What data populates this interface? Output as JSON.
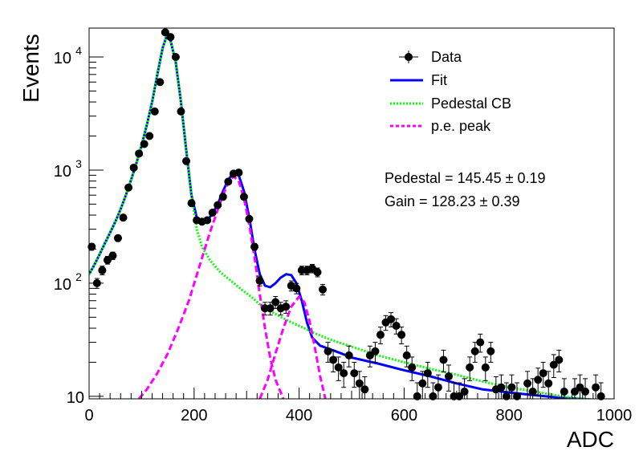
{
  "chart_data": {
    "type": "scatter",
    "xlabel": "ADC",
    "ylabel": "Events",
    "xlim": [
      0,
      1000
    ],
    "ylim": [
      9.5,
      18000
    ],
    "yscale": "log",
    "x_ticks": [
      "0",
      "200",
      "400",
      "600",
      "800",
      "1000"
    ],
    "y_ticks": [
      {
        "value": 10,
        "base": "10",
        "exp": ""
      },
      {
        "value": 100,
        "base": "10",
        "exp": "2"
      },
      {
        "value": 1000,
        "base": "10",
        "exp": "3"
      },
      {
        "value": 10000,
        "base": "10",
        "exp": "4"
      }
    ],
    "legend": {
      "placement": "top-right",
      "entries": [
        {
          "label": "Data",
          "style": "marker",
          "color": "#000000"
        },
        {
          "label": "Fit",
          "style": "solid",
          "color": "#0000ff"
        },
        {
          "label": "Pedestal CB",
          "style": "dotted",
          "color": "#00ff00"
        },
        {
          "label": "p.e. peak",
          "style": "dashed",
          "color": "#ff00ff"
        }
      ]
    },
    "annotations": [
      {
        "text": "Pedestal = 145.45",
        "pm": "± 0.19"
      },
      {
        "text": "Gain = 128.23",
        "pm": "± 0.39"
      }
    ],
    "series": [
      {
        "name": "Data",
        "style": "points",
        "color": "#000000",
        "points": [
          [
            5,
            210
          ],
          [
            15,
            100
          ],
          [
            25,
            130
          ],
          [
            35,
            160
          ],
          [
            45,
            175
          ],
          [
            55,
            250
          ],
          [
            65,
            380
          ],
          [
            75,
            700
          ],
          [
            85,
            1050
          ],
          [
            95,
            1400
          ],
          [
            105,
            1700
          ],
          [
            115,
            2000
          ],
          [
            125,
            3300
          ],
          [
            135,
            6000
          ],
          [
            145,
            16500
          ],
          [
            155,
            15000
          ],
          [
            165,
            10000
          ],
          [
            175,
            3300
          ],
          [
            185,
            1200
          ],
          [
            195,
            510
          ],
          [
            205,
            360
          ],
          [
            215,
            350
          ],
          [
            225,
            360
          ],
          [
            235,
            420
          ],
          [
            245,
            490
          ],
          [
            255,
            580
          ],
          [
            265,
            790
          ],
          [
            275,
            930
          ],
          [
            285,
            950
          ],
          [
            295,
            580
          ],
          [
            305,
            370
          ],
          [
            315,
            210
          ],
          [
            325,
            105
          ],
          [
            335,
            60
          ],
          [
            345,
            60
          ],
          [
            355,
            68
          ],
          [
            365,
            60
          ],
          [
            375,
            62
          ],
          [
            385,
            95
          ],
          [
            395,
            90
          ],
          [
            405,
            130
          ],
          [
            415,
            130
          ],
          [
            425,
            135
          ],
          [
            435,
            125
          ],
          [
            445,
            88
          ],
          [
            455,
            25
          ],
          [
            465,
            21
          ],
          [
            475,
            18
          ],
          [
            485,
            16
          ],
          [
            495,
            23
          ],
          [
            505,
            16
          ],
          [
            515,
            13
          ],
          [
            525,
            11.5
          ],
          [
            535,
            23
          ],
          [
            545,
            25
          ],
          [
            555,
            35
          ],
          [
            565,
            45
          ],
          [
            575,
            48
          ],
          [
            585,
            42
          ],
          [
            595,
            35
          ],
          [
            605,
            23
          ],
          [
            615,
            18
          ],
          [
            625,
            10
          ],
          [
            635,
            13
          ],
          [
            645,
            16
          ],
          [
            655,
            10
          ],
          [
            665,
            12
          ],
          [
            675,
            21
          ],
          [
            685,
            15
          ],
          [
            695,
            10
          ],
          [
            705,
            10
          ],
          [
            715,
            11
          ],
          [
            725,
            18
          ],
          [
            735,
            25
          ],
          [
            745,
            30
          ],
          [
            755,
            18
          ],
          [
            765,
            25
          ],
          [
            775,
            11.5
          ],
          [
            785,
            12
          ],
          [
            795,
            10
          ],
          [
            805,
            12
          ],
          [
            815,
            10
          ],
          [
            825,
            9
          ],
          [
            835,
            13
          ],
          [
            845,
            11
          ],
          [
            855,
            14
          ],
          [
            865,
            16
          ],
          [
            875,
            13
          ],
          [
            885,
            19
          ],
          [
            895,
            21
          ],
          [
            905,
            11
          ],
          [
            915,
            9
          ],
          [
            925,
            11
          ],
          [
            935,
            12
          ],
          [
            945,
            11
          ],
          [
            955,
            9
          ],
          [
            965,
            12
          ],
          [
            975,
            10
          ],
          [
            985,
            8
          ],
          [
            995,
            9
          ]
        ]
      },
      {
        "name": "Fit",
        "style": "solid",
        "color": "#0000ff",
        "points": [
          [
            0,
            120
          ],
          [
            10,
            145
          ],
          [
            20,
            180
          ],
          [
            30,
            225
          ],
          [
            40,
            280
          ],
          [
            50,
            350
          ],
          [
            60,
            450
          ],
          [
            70,
            600
          ],
          [
            80,
            820
          ],
          [
            90,
            1150
          ],
          [
            100,
            1650
          ],
          [
            110,
            2500
          ],
          [
            120,
            4000
          ],
          [
            130,
            7000
          ],
          [
            140,
            12000
          ],
          [
            148,
            15500
          ],
          [
            155,
            14000
          ],
          [
            165,
            9000
          ],
          [
            175,
            4000
          ],
          [
            185,
            1500
          ],
          [
            195,
            600
          ],
          [
            205,
            380
          ],
          [
            215,
            340
          ],
          [
            225,
            360
          ],
          [
            235,
            410
          ],
          [
            245,
            500
          ],
          [
            255,
            650
          ],
          [
            265,
            820
          ],
          [
            275,
            950
          ],
          [
            285,
            900
          ],
          [
            295,
            650
          ],
          [
            305,
            380
          ],
          [
            315,
            200
          ],
          [
            325,
            120
          ],
          [
            335,
            95
          ],
          [
            345,
            92
          ],
          [
            355,
            100
          ],
          [
            365,
            112
          ],
          [
            375,
            120
          ],
          [
            385,
            118
          ],
          [
            395,
            100
          ],
          [
            405,
            70
          ],
          [
            415,
            45
          ],
          [
            425,
            33
          ],
          [
            440,
            28
          ],
          [
            460,
            26
          ],
          [
            480,
            24
          ],
          [
            500,
            22
          ],
          [
            550,
            19.5
          ],
          [
            600,
            17
          ],
          [
            650,
            15
          ],
          [
            700,
            13
          ],
          [
            750,
            11.5
          ],
          [
            800,
            10.8
          ],
          [
            850,
            10.2
          ],
          [
            900,
            9.7
          ],
          [
            950,
            9.4
          ],
          [
            995,
            9.1
          ]
        ]
      },
      {
        "name": "Pedestal CB",
        "style": "dotted",
        "color": "#00ff00",
        "points": [
          [
            0,
            120
          ],
          [
            10,
            145
          ],
          [
            20,
            180
          ],
          [
            30,
            225
          ],
          [
            40,
            280
          ],
          [
            50,
            350
          ],
          [
            60,
            450
          ],
          [
            70,
            600
          ],
          [
            80,
            820
          ],
          [
            90,
            1150
          ],
          [
            100,
            1650
          ],
          [
            110,
            2500
          ],
          [
            120,
            4000
          ],
          [
            130,
            7000
          ],
          [
            140,
            12000
          ],
          [
            148,
            15500
          ],
          [
            155,
            14000
          ],
          [
            165,
            9000
          ],
          [
            175,
            4000
          ],
          [
            185,
            1500
          ],
          [
            195,
            600
          ],
          [
            205,
            300
          ],
          [
            215,
            210
          ],
          [
            230,
            160
          ],
          [
            250,
            125
          ],
          [
            270,
            105
          ],
          [
            290,
            88
          ],
          [
            310,
            75
          ],
          [
            330,
            62
          ],
          [
            350,
            55
          ],
          [
            370,
            49
          ],
          [
            390,
            44
          ],
          [
            410,
            40
          ],
          [
            430,
            36
          ],
          [
            450,
            33
          ],
          [
            470,
            30.5
          ],
          [
            500,
            27.5
          ],
          [
            550,
            23
          ],
          [
            600,
            20
          ],
          [
            650,
            17.5
          ],
          [
            700,
            15.5
          ],
          [
            750,
            13.5
          ],
          [
            800,
            12
          ],
          [
            850,
            11
          ],
          [
            900,
            10
          ],
          [
            950,
            9.4
          ],
          [
            995,
            9
          ]
        ]
      },
      {
        "name": "p.e. peak 1",
        "style": "dashed",
        "color": "#ff00ff",
        "points": [
          [
            95,
            9.5
          ],
          [
            110,
            11.5
          ],
          [
            130,
            16
          ],
          [
            150,
            24
          ],
          [
            170,
            40
          ],
          [
            190,
            70
          ],
          [
            210,
            140
          ],
          [
            230,
            280
          ],
          [
            250,
            520
          ],
          [
            265,
            780
          ],
          [
            275,
            880
          ],
          [
            285,
            800
          ],
          [
            295,
            560
          ],
          [
            305,
            330
          ],
          [
            315,
            170
          ],
          [
            325,
            80
          ],
          [
            335,
            40
          ],
          [
            345,
            22
          ],
          [
            355,
            14
          ],
          [
            370,
            9.5
          ]
        ]
      },
      {
        "name": "p.e. peak 2",
        "style": "dashed",
        "color": "#ff00ff",
        "points": [
          [
            325,
            9.5
          ],
          [
            340,
            14
          ],
          [
            355,
            24
          ],
          [
            370,
            40
          ],
          [
            385,
            62
          ],
          [
            400,
            76
          ],
          [
            410,
            68
          ],
          [
            420,
            46
          ],
          [
            430,
            27
          ],
          [
            440,
            15
          ],
          [
            450,
            9.5
          ]
        ]
      }
    ]
  }
}
